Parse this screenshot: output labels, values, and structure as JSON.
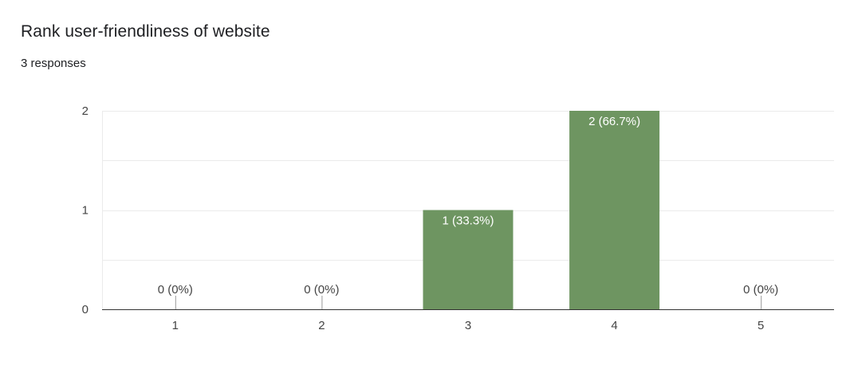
{
  "question": {
    "title": "Rank user-friendliness of website",
    "responses": "3 responses"
  },
  "colors": {
    "bar": "#6e9561",
    "gridline": "#ebebeb",
    "baseline": "#333333",
    "inside_label": "#ffffff",
    "outside_label": "#444444"
  },
  "chart_data": {
    "type": "bar",
    "title": "",
    "xlabel": "",
    "ylabel": "",
    "categories": [
      "1",
      "2",
      "3",
      "4",
      "5"
    ],
    "values": [
      0,
      0,
      1,
      2,
      0
    ],
    "data_labels": [
      "0 (0%)",
      "0 (0%)",
      "1 (33.3%)",
      "2 (66.7%)",
      "0 (0%)"
    ],
    "ylim": [
      0,
      2
    ],
    "yticks": [
      "0",
      "1",
      "2"
    ],
    "grid": true,
    "legend": "none"
  }
}
